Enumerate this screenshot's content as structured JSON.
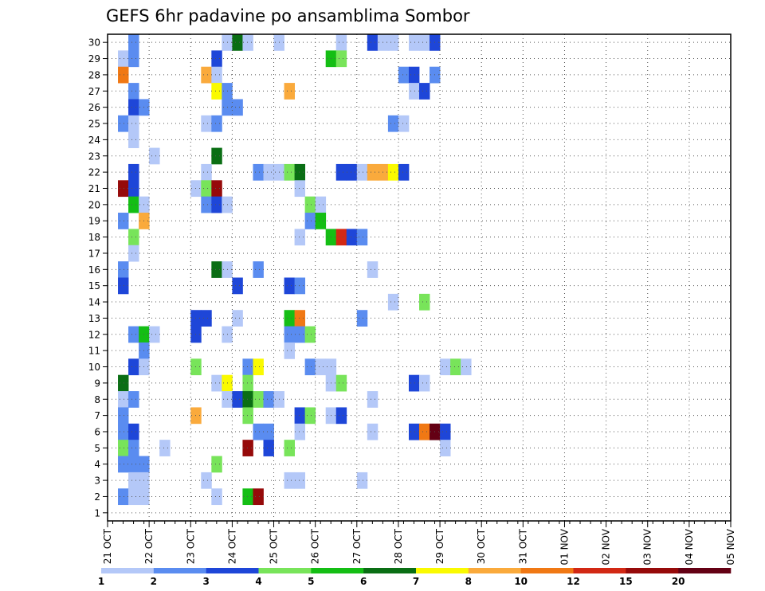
{
  "chart_data": {
    "type": "heatmap",
    "title": "GEFS 6hr padavine po ansamblima Sombor",
    "xlabel": "",
    "ylabel": "",
    "x_tick_labels": [
      "21 OCT",
      "22 OCT",
      "23 OCT",
      "24 OCT",
      "25 OCT",
      "26 OCT",
      "27 OCT",
      "28 OCT",
      "29 OCT",
      "30 OCT",
      "31 OCT",
      "01 NOV",
      "02 NOV",
      "03 NOV",
      "04 NOV",
      "05 NOV"
    ],
    "y_tick_labels": [
      "1",
      "2",
      "3",
      "4",
      "5",
      "6",
      "7",
      "8",
      "9",
      "10",
      "11",
      "12",
      "13",
      "14",
      "15",
      "16",
      "17",
      "18",
      "19",
      "20",
      "21",
      "22",
      "23",
      "24",
      "25",
      "26",
      "27",
      "28",
      "29",
      "30"
    ],
    "xlim": [
      0,
      60
    ],
    "ylim": [
      0.5,
      30.5
    ],
    "grid": true,
    "time_step": "6hr",
    "legend_placement": "bottom",
    "legend_breaks": [
      "1",
      "2",
      "3",
      "4",
      "5",
      "6",
      "7",
      "8",
      "10",
      "12",
      "15",
      "20"
    ],
    "legend_colors": [
      "#b4c8f8",
      "#5a8cf0",
      "#1e46d8",
      "#78e45a",
      "#14be14",
      "#0a6e14",
      "#fafa00",
      "#faaa3c",
      "#f07814",
      "#d22814",
      "#960a0a",
      "#640014"
    ],
    "cells": [
      [
        2,
        30,
        2
      ],
      [
        11,
        30,
        1
      ],
      [
        12,
        30,
        6
      ],
      [
        13,
        30,
        1
      ],
      [
        16,
        30,
        1
      ],
      [
        22,
        30,
        1
      ],
      [
        25,
        30,
        3
      ],
      [
        26,
        30,
        1
      ],
      [
        27,
        30,
        1
      ],
      [
        29,
        30,
        1
      ],
      [
        30,
        30,
        1
      ],
      [
        31,
        30,
        3
      ],
      [
        1,
        29,
        1
      ],
      [
        2,
        29,
        2
      ],
      [
        10,
        29,
        3
      ],
      [
        21,
        29,
        5
      ],
      [
        22,
        29,
        4
      ],
      [
        1,
        28,
        10
      ],
      [
        9,
        28,
        8
      ],
      [
        10,
        28,
        1
      ],
      [
        28,
        28,
        2
      ],
      [
        29,
        28,
        3
      ],
      [
        31,
        28,
        2
      ],
      [
        2,
        27,
        2
      ],
      [
        10,
        27,
        7
      ],
      [
        11,
        27,
        2
      ],
      [
        17,
        27,
        8
      ],
      [
        29,
        27,
        1
      ],
      [
        30,
        27,
        3
      ],
      [
        2,
        26,
        3
      ],
      [
        3,
        26,
        2
      ],
      [
        11,
        26,
        2
      ],
      [
        12,
        26,
        2
      ],
      [
        1,
        25,
        2
      ],
      [
        2,
        25,
        1
      ],
      [
        9,
        25,
        1
      ],
      [
        10,
        25,
        2
      ],
      [
        27,
        25,
        2
      ],
      [
        28,
        25,
        1
      ],
      [
        2,
        24,
        1
      ],
      [
        4,
        23,
        1
      ],
      [
        10,
        23,
        6
      ],
      [
        2,
        22,
        3
      ],
      [
        9,
        22,
        1
      ],
      [
        14,
        22,
        2
      ],
      [
        15,
        22,
        1
      ],
      [
        16,
        22,
        1
      ],
      [
        17,
        22,
        4
      ],
      [
        18,
        22,
        6
      ],
      [
        22,
        22,
        3
      ],
      [
        23,
        22,
        3
      ],
      [
        24,
        22,
        1
      ],
      [
        25,
        22,
        8
      ],
      [
        26,
        22,
        8
      ],
      [
        27,
        22,
        7
      ],
      [
        28,
        22,
        3
      ],
      [
        1,
        21,
        15
      ],
      [
        2,
        21,
        3
      ],
      [
        8,
        21,
        1
      ],
      [
        9,
        21,
        4
      ],
      [
        10,
        21,
        15
      ],
      [
        18,
        21,
        1
      ],
      [
        2,
        20,
        5
      ],
      [
        3,
        20,
        1
      ],
      [
        9,
        20,
        2
      ],
      [
        10,
        20,
        3
      ],
      [
        11,
        20,
        1
      ],
      [
        19,
        20,
        4
      ],
      [
        20,
        20,
        1
      ],
      [
        1,
        19,
        2
      ],
      [
        3,
        19,
        8
      ],
      [
        19,
        19,
        2
      ],
      [
        20,
        19,
        5
      ],
      [
        2,
        18,
        4
      ],
      [
        18,
        18,
        1
      ],
      [
        21,
        18,
        5
      ],
      [
        22,
        18,
        12
      ],
      [
        23,
        18,
        3
      ],
      [
        24,
        18,
        2
      ],
      [
        2,
        17,
        1
      ],
      [
        1,
        16,
        2
      ],
      [
        10,
        16,
        6
      ],
      [
        11,
        16,
        1
      ],
      [
        14,
        16,
        2
      ],
      [
        25,
        16,
        1
      ],
      [
        1,
        15,
        3
      ],
      [
        12,
        15,
        3
      ],
      [
        17,
        15,
        3
      ],
      [
        18,
        15,
        2
      ],
      [
        27,
        14,
        1
      ],
      [
        30,
        14,
        4
      ],
      [
        8,
        13,
        3
      ],
      [
        9,
        13,
        3
      ],
      [
        12,
        13,
        1
      ],
      [
        17,
        13,
        5
      ],
      [
        18,
        13,
        10
      ],
      [
        24,
        13,
        2
      ],
      [
        2,
        12,
        2
      ],
      [
        3,
        12,
        5
      ],
      [
        4,
        12,
        1
      ],
      [
        8,
        12,
        3
      ],
      [
        11,
        12,
        1
      ],
      [
        17,
        12,
        2
      ],
      [
        18,
        12,
        2
      ],
      [
        19,
        12,
        4
      ],
      [
        3,
        11,
        2
      ],
      [
        17,
        11,
        1
      ],
      [
        2,
        10,
        3
      ],
      [
        3,
        10,
        1
      ],
      [
        8,
        10,
        4
      ],
      [
        13,
        10,
        2
      ],
      [
        14,
        10,
        7
      ],
      [
        19,
        10,
        2
      ],
      [
        20,
        10,
        1
      ],
      [
        21,
        10,
        1
      ],
      [
        32,
        10,
        1
      ],
      [
        33,
        10,
        4
      ],
      [
        34,
        10,
        1
      ],
      [
        1,
        9,
        6
      ],
      [
        10,
        9,
        1
      ],
      [
        11,
        9,
        7
      ],
      [
        13,
        9,
        4
      ],
      [
        21,
        9,
        1
      ],
      [
        22,
        9,
        4
      ],
      [
        29,
        9,
        3
      ],
      [
        30,
        9,
        1
      ],
      [
        1,
        8,
        1
      ],
      [
        2,
        8,
        2
      ],
      [
        11,
        8,
        1
      ],
      [
        12,
        8,
        3
      ],
      [
        13,
        8,
        6
      ],
      [
        14,
        8,
        4
      ],
      [
        15,
        8,
        2
      ],
      [
        16,
        8,
        1
      ],
      [
        25,
        8,
        1
      ],
      [
        1,
        7,
        2
      ],
      [
        8,
        7,
        8
      ],
      [
        13,
        7,
        4
      ],
      [
        18,
        7,
        3
      ],
      [
        19,
        7,
        4
      ],
      [
        21,
        7,
        1
      ],
      [
        22,
        7,
        3
      ],
      [
        1,
        6,
        2
      ],
      [
        2,
        6,
        3
      ],
      [
        14,
        6,
        2
      ],
      [
        15,
        6,
        2
      ],
      [
        18,
        6,
        1
      ],
      [
        25,
        6,
        1
      ],
      [
        29,
        6,
        3
      ],
      [
        30,
        6,
        10
      ],
      [
        31,
        6,
        20
      ],
      [
        32,
        6,
        3
      ],
      [
        1,
        5,
        4
      ],
      [
        2,
        5,
        2
      ],
      [
        5,
        5,
        1
      ],
      [
        13,
        5,
        15
      ],
      [
        15,
        5,
        3
      ],
      [
        17,
        5,
        4
      ],
      [
        32,
        5,
        1
      ],
      [
        1,
        4,
        2
      ],
      [
        2,
        4,
        2
      ],
      [
        3,
        4,
        2
      ],
      [
        10,
        4,
        4
      ],
      [
        2,
        3,
        1
      ],
      [
        3,
        3,
        1
      ],
      [
        9,
        3,
        1
      ],
      [
        17,
        3,
        1
      ],
      [
        18,
        3,
        1
      ],
      [
        24,
        3,
        1
      ],
      [
        1,
        2,
        2
      ],
      [
        2,
        2,
        1
      ],
      [
        3,
        2,
        1
      ],
      [
        10,
        2,
        1
      ],
      [
        13,
        2,
        5
      ],
      [
        14,
        2,
        15
      ]
    ]
  }
}
